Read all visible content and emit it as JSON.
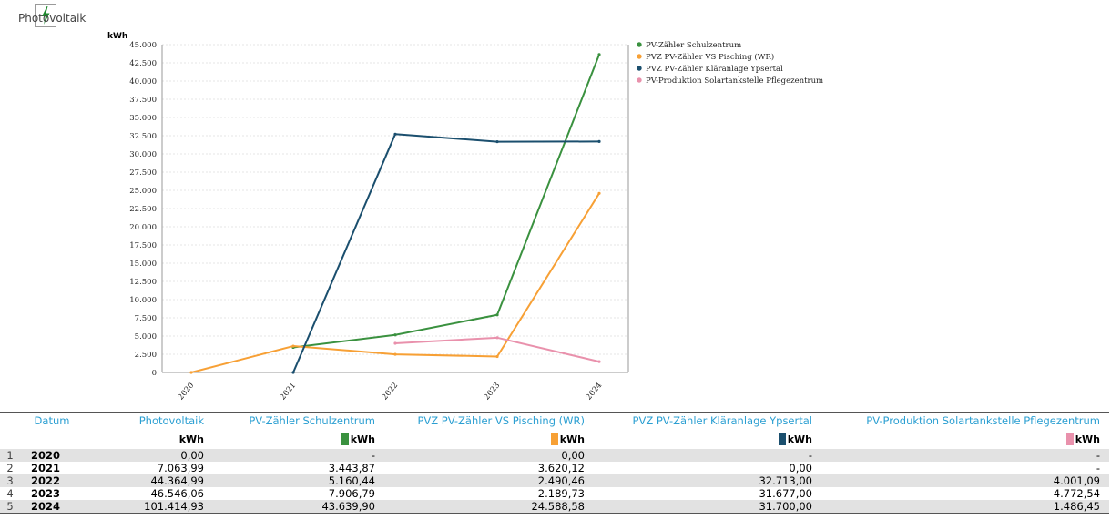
{
  "app": {
    "icon": "lightning-bolt-icon",
    "label": "Photovoltaik"
  },
  "chart_data": {
    "type": "line",
    "y_unit": "kWh",
    "ylim": [
      0,
      45000
    ],
    "y_ticks": [
      "0",
      "2.500",
      "5.000",
      "7.500",
      "10.000",
      "12.500",
      "15.000",
      "17.500",
      "20.000",
      "22.500",
      "25.000",
      "27.500",
      "30.000",
      "32.500",
      "35.000",
      "37.500",
      "40.000",
      "42.500",
      "45.000"
    ],
    "categories": [
      "2020",
      "2021",
      "2022",
      "2023",
      "2024"
    ],
    "grid": true,
    "legend_position": "top-right",
    "series": [
      {
        "name": "PV-Zähler Schulzentrum",
        "color": "#3a913f",
        "values": [
          null,
          3443.87,
          5160.44,
          7906.79,
          43639.9
        ]
      },
      {
        "name": "PVZ PV-Zähler VS Pisching (WR)",
        "color": "#f7a035",
        "values": [
          0,
          3620.12,
          2490.46,
          2189.73,
          24588.58
        ]
      },
      {
        "name": "PVZ PV-Zähler Kläranlage Ypsertal",
        "color": "#1b4f6e",
        "values": [
          null,
          0,
          32713.0,
          31677.0,
          31700.0
        ]
      },
      {
        "name": "PV-Produktion Solartankstelle Pflegezentrum",
        "color": "#e991ac",
        "values": [
          null,
          null,
          4001.09,
          4772.54,
          1486.45
        ]
      }
    ]
  },
  "table": {
    "headers": [
      "Datum",
      "Photovoltaik",
      "PV-Zähler Schulzentrum",
      "PVZ PV-Zähler VS Pisching (WR)",
      "PVZ PV-Zähler Kläranlage Ypsertal",
      "PV-Produktion Solartankstelle Pflegezentrum"
    ],
    "units": [
      "kWh",
      "kWh",
      "kWh",
      "kWh",
      "kWh"
    ],
    "unit_colors": [
      "",
      "#3a913f",
      "#f7a035",
      "#1b4f6e",
      "#e991ac"
    ],
    "rows": [
      {
        "idx": "1",
        "year": "2020",
        "cells": [
          "0,00",
          "-",
          "0,00",
          "-",
          "-"
        ]
      },
      {
        "idx": "2",
        "year": "2021",
        "cells": [
          "7.063,99",
          "3.443,87",
          "3.620,12",
          "0,00",
          "-"
        ]
      },
      {
        "idx": "3",
        "year": "2022",
        "cells": [
          "44.364,99",
          "5.160,44",
          "2.490,46",
          "32.713,00",
          "4.001,09"
        ]
      },
      {
        "idx": "4",
        "year": "2023",
        "cells": [
          "46.546,06",
          "7.906,79",
          "2.189,73",
          "31.677,00",
          "4.772,54"
        ]
      },
      {
        "idx": "5",
        "year": "2024",
        "cells": [
          "101.414,93",
          "43.639,90",
          "24.588,58",
          "31.700,00",
          "1.486,45"
        ]
      }
    ]
  }
}
